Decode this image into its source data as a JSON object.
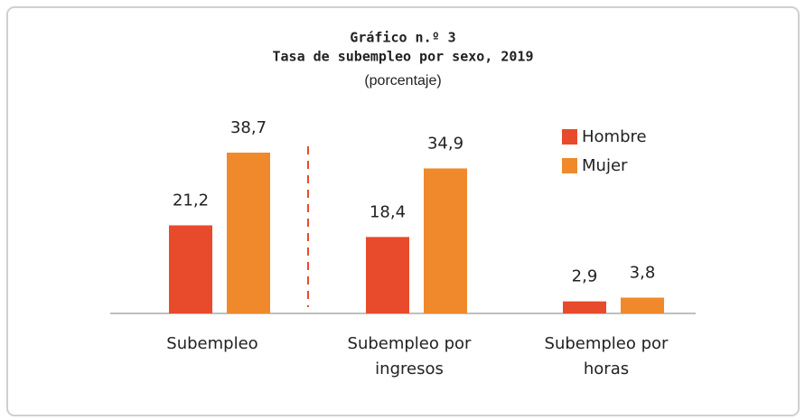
{
  "chart_data": {
    "type": "bar",
    "title": "Gráfico n.º 3",
    "subtitle": "Tasa de subempleo por sexo, 2019",
    "unit_note": "(porcentaje)",
    "categories": [
      "Subempleo",
      "Subempleo por ingresos",
      "Subempleo por horas"
    ],
    "series": [
      {
        "name": "Hombre",
        "color": "#e84a2c",
        "values": [
          21.2,
          18.4,
          2.9
        ],
        "value_labels": [
          "21,2",
          "18,4",
          "2,9"
        ]
      },
      {
        "name": "Mujer",
        "color": "#f0892c",
        "values": [
          38.7,
          34.9,
          3.8
        ],
        "value_labels": [
          "38,7",
          "34,9",
          "3,8"
        ]
      }
    ],
    "legend": "upper right"
  }
}
